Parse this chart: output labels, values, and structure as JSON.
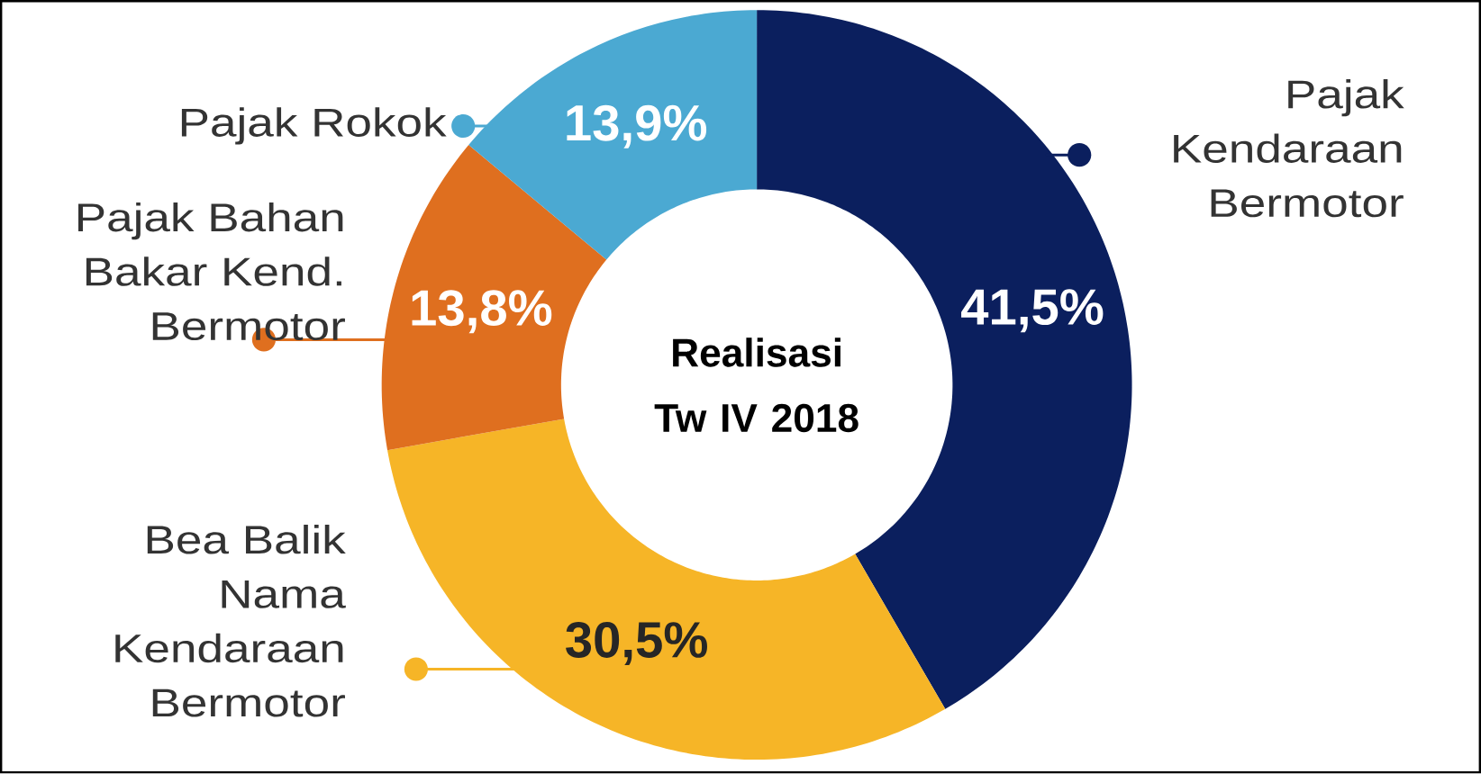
{
  "chart_data": {
    "type": "donut",
    "title": "Realisasi Tw IV 2018",
    "categories": [
      "Pajak Kendaraan Bermotor",
      "Bea Balik Nama Kendaraan Bermotor",
      "Pajak Bahan Bakar Kend. Bermotor",
      "Pajak Rokok"
    ],
    "values": [
      41.5,
      30.5,
      13.8,
      13.9
    ],
    "colors": [
      "#0b1f5e",
      "#f6b527",
      "#df6f1f",
      "#4ba9d2"
    ],
    "value_labels": [
      "41,5%",
      "30,5%",
      "13,8%",
      "13,9%"
    ]
  }
}
